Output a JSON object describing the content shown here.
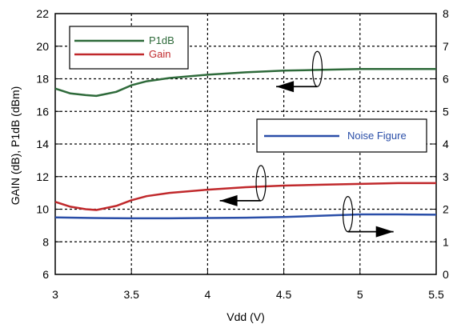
{
  "chart_data": {
    "type": "line",
    "xlabel": "Vdd (V)",
    "ylabel": "GAIN (dB), P1dB (dBm)",
    "xlim": [
      3,
      5.5
    ],
    "ylim_left": [
      6,
      22
    ],
    "ylim_right": [
      0,
      8
    ],
    "x_ticks": [
      "3",
      "3.5",
      "4",
      "4.5",
      "5",
      "5.5"
    ],
    "y_left_ticks": [
      "6",
      "8",
      "10",
      "12",
      "14",
      "16",
      "18",
      "20",
      "22"
    ],
    "y_right_ticks": [
      "0",
      "1",
      "2",
      "3",
      "4",
      "5",
      "6",
      "7",
      "8"
    ],
    "grid": true,
    "series": [
      {
        "name": "P1dB",
        "axis": "left",
        "color": "#2e6a3a",
        "x": [
          3.0,
          3.1,
          3.2,
          3.27,
          3.4,
          3.5,
          3.6,
          3.75,
          4.0,
          4.25,
          4.5,
          4.75,
          5.0,
          5.25,
          5.5
        ],
        "y": [
          17.4,
          17.1,
          17.0,
          16.95,
          17.2,
          17.6,
          17.85,
          18.05,
          18.25,
          18.4,
          18.5,
          18.55,
          18.6,
          18.6,
          18.6
        ]
      },
      {
        "name": "Gain",
        "axis": "left",
        "color": "#c0282b",
        "x": [
          3.0,
          3.1,
          3.2,
          3.27,
          3.4,
          3.5,
          3.6,
          3.75,
          4.0,
          4.25,
          4.5,
          4.75,
          5.0,
          5.25,
          5.5
        ],
        "y": [
          10.45,
          10.15,
          10.0,
          9.95,
          10.2,
          10.55,
          10.8,
          11.0,
          11.2,
          11.35,
          11.45,
          11.5,
          11.55,
          11.6,
          11.6
        ]
      },
      {
        "name": "Noise Figure",
        "axis": "right",
        "color": "#2a4ea8",
        "x": [
          3.0,
          3.25,
          3.5,
          3.75,
          4.0,
          4.25,
          4.5,
          4.75,
          5.0,
          5.25,
          5.5
        ],
        "y": [
          1.75,
          1.73,
          1.72,
          1.72,
          1.73,
          1.74,
          1.76,
          1.8,
          1.84,
          1.84,
          1.83
        ]
      }
    ],
    "legends": [
      {
        "entries": [
          "P1dB",
          "Gain"
        ],
        "placement": "top-left"
      },
      {
        "entries": [
          "Noise Figure"
        ],
        "placement": "middle-right"
      }
    ],
    "annotations": [
      {
        "type": "ellipse-arrow",
        "target_axis": "left",
        "series": [
          "P1dB"
        ],
        "at_x": 4.72,
        "at_y": 18.6,
        "arrow_to_x": 4.45
      },
      {
        "type": "ellipse-arrow",
        "target_axis": "left",
        "series": [
          "Gain"
        ],
        "at_x": 4.35,
        "at_y": 11.6,
        "arrow_to_x": 4.08
      },
      {
        "type": "ellipse-arrow",
        "target_axis": "right",
        "series": [
          "Noise Figure"
        ],
        "at_x": 4.92,
        "at_y": 1.85,
        "arrow_to_x": 5.22
      }
    ]
  }
}
